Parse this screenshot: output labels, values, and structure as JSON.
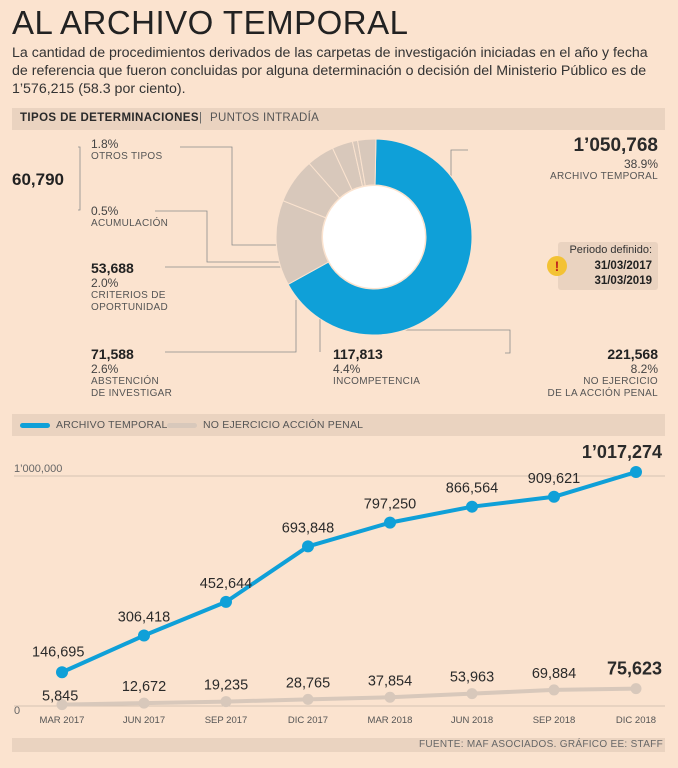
{
  "title": "AL ARCHIVO TEMPORAL",
  "intro": "La cantidad de procedimientos derivados de las carpetas de investigación iniciadas en el año y fecha de referencia que fueron concluidas por alguna determinación o decisión del Ministerio Público es de 1’576,215 (58.3 por ciento).",
  "section1": {
    "heading": "TIPOS DE DETERMINACIONES",
    "separator": "|",
    "subheading": "PUNTOS INTRADÍA"
  },
  "period": {
    "title": "Periodo definido:",
    "date1": "31/03/2017",
    "date2": "31/03/2019",
    "icon": "warning-icon"
  },
  "donut_labels": {
    "archivo": {
      "value": "1’050,768",
      "pct": "38.9%",
      "caption": "ARCHIVO TEMPORAL"
    },
    "otros": {
      "pct": "1.8%",
      "caption": "OTROS TIPOS"
    },
    "group_total": "60,790",
    "acumulacion": {
      "pct": "0.5%",
      "caption": "ACUMULACIÓN"
    },
    "criterios": {
      "value": "53,688",
      "pct": "2.0%",
      "caption1": "CRITERIOS DE",
      "caption2": "OPORTUNIDAD"
    },
    "abstencion": {
      "value": "71,588",
      "pct": "2.6%",
      "caption1": "ABSTENCIÓN",
      "caption2": "DE INVESTIGAR"
    },
    "incompetencia": {
      "value": "117,813",
      "pct": "4.4%",
      "caption": "INCOMPETENCIA"
    },
    "no_ejercicio": {
      "value": "221,568",
      "pct": "8.2%",
      "caption1": "NO EJERCICIO",
      "caption2": "DE LA ACCIÓN PENAL"
    }
  },
  "legend": {
    "series1": "ARCHIVO TEMPORAL",
    "series2": "NO EJERCICIO ACCIÓN PENAL"
  },
  "footer": "FUENTE: MAF ASOCIADOS. GRÁFICO EE: STAFF",
  "colors": {
    "blue": "#0fa0d8",
    "grey": "#d8c8bb",
    "background": "#fbe3cf",
    "band": "#ead3c0"
  },
  "chart_data": [
    {
      "type": "pie",
      "labels": [
        "ARCHIVO TEMPORAL",
        "NO EJERCICIO DE LA ACCIÓN PENAL",
        "INCOMPETENCIA",
        "ABSTENCIÓN DE INVESTIGAR",
        "CRITERIOS DE OPORTUNIDAD",
        "ACUMULACIÓN",
        "OTROS TIPOS"
      ],
      "values": [
        1050768,
        221568,
        117813,
        71588,
        53688,
        13500,
        47290
      ],
      "percent_labels": [
        "38.9%",
        "8.2%",
        "4.4%",
        "2.6%",
        "2.0%",
        "0.5%",
        "1.8%"
      ],
      "hole": true
    },
    {
      "type": "line",
      "categories": [
        "MAR 2017",
        "JUN 2017",
        "SEP 2017",
        "DIC 2017",
        "MAR 2018",
        "JUN 2018",
        "SEP 2018",
        "DIC 2018"
      ],
      "series": [
        {
          "name": "ARCHIVO TEMPORAL",
          "values": [
            146695,
            306418,
            452644,
            693848,
            797250,
            866564,
            909621,
            1017274
          ],
          "labels": [
            "146,695",
            "306,418",
            "452,644",
            "693,848",
            "797,250",
            "866,564",
            "909,621",
            "1’017,274"
          ]
        },
        {
          "name": "NO EJERCICIO ACCIÓN PENAL",
          "values": [
            5845,
            12672,
            19235,
            28765,
            37854,
            53963,
            69884,
            75623
          ],
          "labels": [
            "5,845",
            "12,672",
            "19,235",
            "28,765",
            "37,854",
            "53,963",
            "69,884",
            "75,623"
          ]
        }
      ],
      "yticks": [
        {
          "value": 0,
          "label": "0"
        },
        {
          "value": 1000000,
          "label": "1’000,000"
        }
      ],
      "ylim": [
        0,
        1000000
      ],
      "grid": true
    }
  ]
}
